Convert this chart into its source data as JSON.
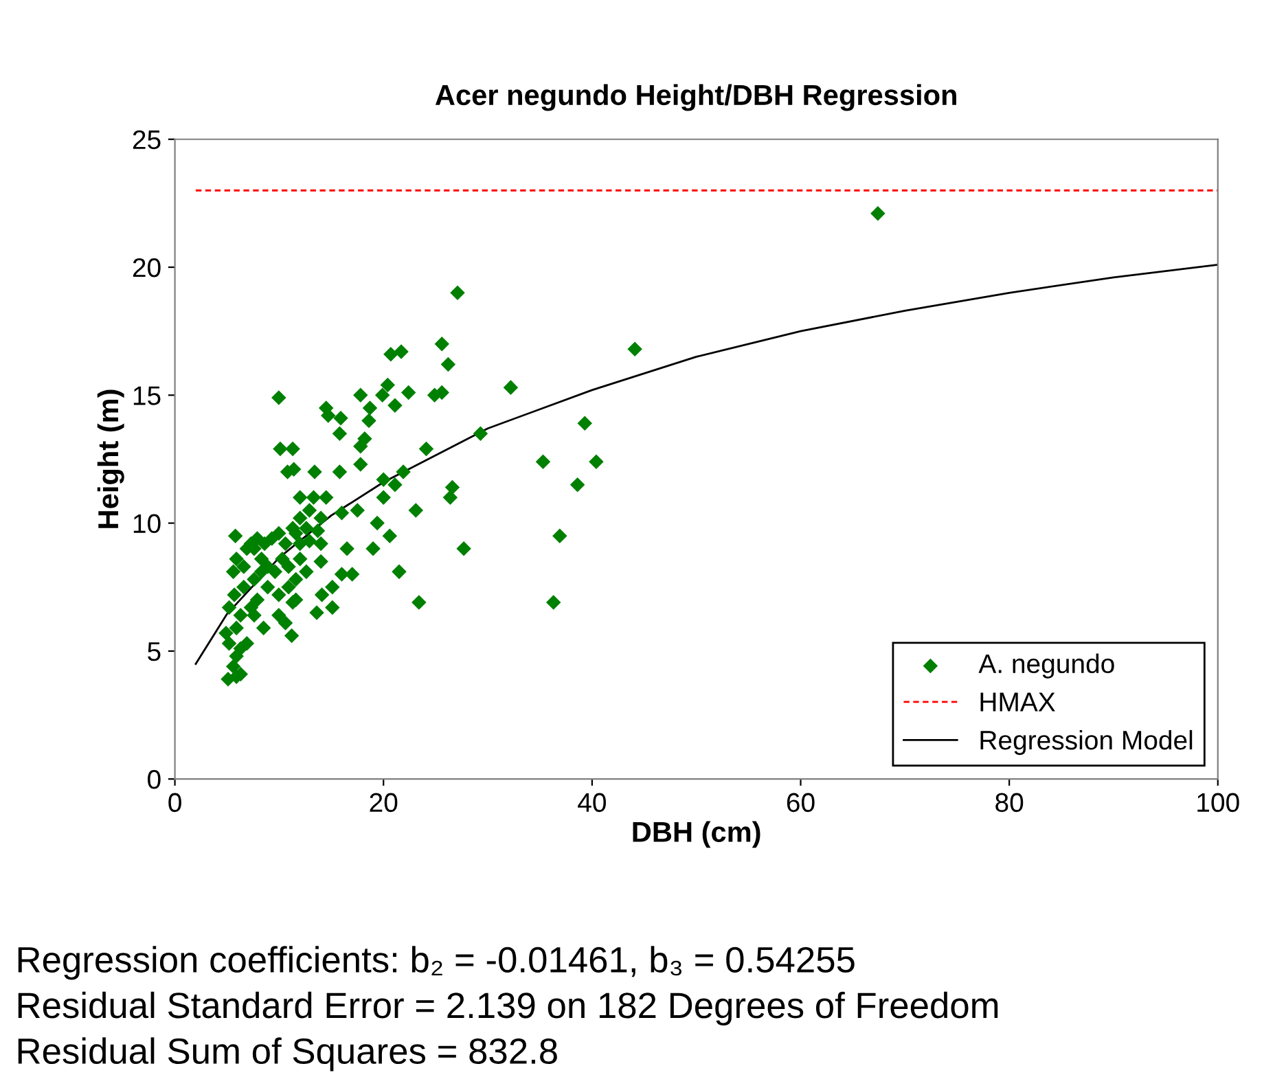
{
  "chart_data": {
    "type": "scatter",
    "title": "Acer negundo Height/DBH Regression",
    "xlabel": "DBH (cm)",
    "ylabel": "Height (m)",
    "xlim": [
      0,
      100
    ],
    "xticks": [
      0,
      20,
      40,
      60,
      80,
      100
    ],
    "ylim": [
      0,
      25
    ],
    "yticks": [
      0,
      5,
      10,
      15,
      20,
      25
    ],
    "grid": false,
    "legend": "bottom right",
    "series": [
      {
        "name": "A. negundo",
        "marker": "diamond",
        "color": "#008000",
        "x": [
          67.4,
          27.1,
          25.6,
          26.2,
          21.7,
          20.7,
          44.1,
          22.4,
          20.4,
          19.9,
          21.1,
          24.9,
          25.6,
          32.2,
          9.96,
          17.8,
          14.5,
          14.7,
          15.9,
          18.7,
          18.6,
          15.8,
          18.2,
          17.8,
          17.8,
          29.3,
          39.3,
          10.1,
          11.3,
          24.1,
          35.3,
          40.4,
          10.8,
          11.4,
          13.4,
          15.8,
          21.9,
          38.6,
          20.0,
          21.1,
          26.6,
          26.4,
          20.0,
          23.1,
          12.0,
          13.3,
          14.5,
          17.5,
          16.0,
          19.4,
          20.6,
          36.9,
          27.7,
          19.0,
          16.5,
          21.5,
          23.4,
          36.3,
          17.0,
          16.0,
          15.1,
          14.1,
          15.1,
          13.6,
          11.2,
          11.3,
          9.96,
          10.6,
          8.5,
          5.8,
          5.1,
          5.9,
          6.3,
          5.6,
          5.9,
          6.3,
          5.2,
          6.9,
          4.9,
          5.9,
          5.2,
          6.3,
          7.3,
          7.9,
          5.7,
          6.6,
          7.6,
          5.6,
          6.6,
          5.9,
          6.9,
          7.6,
          8.6,
          8.3,
          9.3,
          9.96,
          8.9,
          9.6,
          10.6,
          10.3,
          10.9,
          12.0,
          11.6,
          10.9,
          9.96,
          8.9,
          8.3,
          12.0,
          12.6,
          11.6,
          12.9,
          14.0,
          13.7,
          14.0,
          12.9,
          12.0,
          11.3,
          14.0,
          12.6,
          11.6,
          7.6,
          7.3,
          7.9
        ],
        "values": [
          22.1,
          19.0,
          17.0,
          16.2,
          16.7,
          16.6,
          16.8,
          15.1,
          15.4,
          15.0,
          14.6,
          15.0,
          15.1,
          15.3,
          14.9,
          15.0,
          14.5,
          14.2,
          14.1,
          14.5,
          14.0,
          13.5,
          13.3,
          13.0,
          12.3,
          13.5,
          13.9,
          12.9,
          12.9,
          12.9,
          12.4,
          12.4,
          12.0,
          12.1,
          12.0,
          12.0,
          12.0,
          11.5,
          11.7,
          11.5,
          11.4,
          11.0,
          11.0,
          10.5,
          11.0,
          11.0,
          11.0,
          10.5,
          10.4,
          10.0,
          9.5,
          9.5,
          9.0,
          9.0,
          9.0,
          8.1,
          6.9,
          6.9,
          8.0,
          8.0,
          7.5,
          7.2,
          6.7,
          6.5,
          5.6,
          6.9,
          6.4,
          6.1,
          5.9,
          9.5,
          3.9,
          4.0,
          4.1,
          4.4,
          4.8,
          5.1,
          5.3,
          5.3,
          5.7,
          5.9,
          6.7,
          6.4,
          6.7,
          7.0,
          7.2,
          7.5,
          7.8,
          8.1,
          8.3,
          8.6,
          9.0,
          9.0,
          9.2,
          8.6,
          9.4,
          9.6,
          8.3,
          8.1,
          9.2,
          8.6,
          8.3,
          8.6,
          7.8,
          7.5,
          7.2,
          7.5,
          8.1,
          10.2,
          9.8,
          9.6,
          9.3,
          9.2,
          9.7,
          10.2,
          10.5,
          9.2,
          9.8,
          8.5,
          8.1,
          7.0,
          6.4,
          9.2,
          9.4
        ]
      },
      {
        "name": "HMAX",
        "type": "line",
        "line_style": "dashed",
        "marker": "none",
        "color": "#ff0000",
        "x": [
          2,
          100
        ],
        "values": [
          23,
          23
        ]
      },
      {
        "name": "Regression Model",
        "type": "line",
        "line_style": "solid",
        "marker": "none",
        "color": "#000000",
        "x": [
          2,
          5,
          10,
          15,
          20,
          30,
          40,
          50,
          60,
          70,
          80,
          90,
          100
        ],
        "values": [
          4.5,
          6.45,
          8.65,
          10.3,
          11.6,
          13.7,
          15.2,
          16.5,
          17.5,
          18.3,
          19.0,
          19.6,
          20.1
        ]
      }
    ],
    "annotations": [
      "Regression coefficients: b₂ = -0.01461, b₃ = 0.54255",
      "Residual Standard Error = 2.139 on 182 Degrees of Freedom",
      "Residual Sum of Squares = 832.8"
    ]
  }
}
